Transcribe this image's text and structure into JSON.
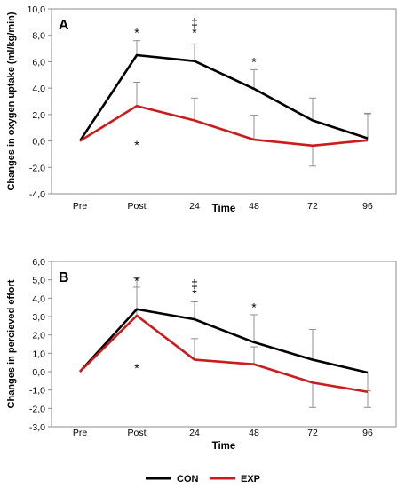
{
  "chart_data": [
    {
      "type": "line",
      "panel_label": "A",
      "xlabel": "Time",
      "ylabel": "Changes in oxygen uptake (ml/kg/min)",
      "categories": [
        "Pre",
        "Post",
        "24",
        "48",
        "72",
        "96"
      ],
      "ylim": [
        -4,
        10
      ],
      "yticks": [
        "-4,0",
        "-2,0",
        "0,0",
        "2,0",
        "4,0",
        "6,0",
        "8,0",
        "10,0"
      ],
      "series": [
        {
          "name": "CON",
          "color": "#000000",
          "values": [
            0.0,
            6.5,
            6.05,
            3.95,
            1.55,
            0.2
          ],
          "error": [
            0,
            1.1,
            1.3,
            1.45,
            1.7,
            1.9
          ]
        },
        {
          "name": "EXP",
          "color": "#cc1b1b",
          "values": [
            0.0,
            2.65,
            1.55,
            0.1,
            -0.35,
            0.05
          ],
          "error": [
            0,
            1.8,
            1.7,
            1.85,
            1.55,
            2.0
          ]
        }
      ],
      "annotations": [
        {
          "category": "Post",
          "y": 8.2,
          "text": "*"
        },
        {
          "category": "24",
          "y": 8.2,
          "text": "*"
        },
        {
          "category": "24",
          "y": 9.0,
          "text": "‡"
        },
        {
          "category": "48",
          "y": 6.0,
          "text": "*"
        },
        {
          "category": "Post",
          "y": -0.3,
          "text": "*"
        }
      ]
    },
    {
      "type": "line",
      "panel_label": "B",
      "xlabel": "Time",
      "ylabel": "Changes in percieved effort",
      "categories": [
        "Pre",
        "Post",
        "24",
        "48",
        "72",
        "96"
      ],
      "ylim": [
        -3,
        6
      ],
      "yticks": [
        "-3,0",
        "-2,0",
        "-1,0",
        "0,0",
        "1,0",
        "2,0",
        "3,0",
        "4,0",
        "5,0",
        "6,0"
      ],
      "series": [
        {
          "name": "CON",
          "color": "#000000",
          "values": [
            0.0,
            3.4,
            2.85,
            1.6,
            0.65,
            -0.05
          ],
          "error": [
            0,
            1.2,
            0.95,
            1.5,
            1.65,
            1.0
          ]
        },
        {
          "name": "EXP",
          "color": "#cc1b1b",
          "values": [
            0.0,
            3.05,
            0.65,
            0.4,
            -0.6,
            -1.1
          ],
          "error": [
            0,
            2.05,
            1.15,
            0.95,
            1.35,
            0.85
          ]
        }
      ],
      "annotations": [
        {
          "category": "Post",
          "y": 4.95,
          "text": "*"
        },
        {
          "category": "24",
          "y": 4.25,
          "text": "*"
        },
        {
          "category": "24",
          "y": 4.8,
          "text": "‡"
        },
        {
          "category": "48",
          "y": 3.5,
          "text": "*"
        },
        {
          "category": "Post",
          "y": 0.2,
          "text": "*"
        }
      ]
    }
  ],
  "legend": [
    {
      "name": "CON",
      "color": "#000000"
    },
    {
      "name": "EXP",
      "color": "#cc1b1b"
    }
  ]
}
